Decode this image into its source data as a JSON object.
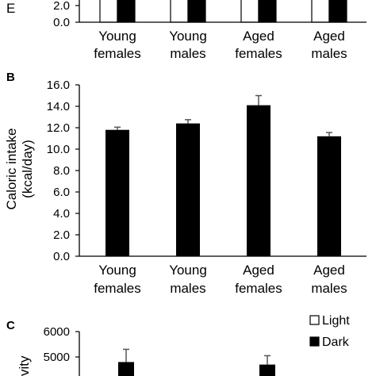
{
  "chart_data": [
    {
      "panel_label": "",
      "type": "bar",
      "ylabel": "E",
      "ylim": [
        0,
        2.0
      ],
      "yticks": [
        "0.0",
        "2.0"
      ],
      "categories": [
        [
          "Young",
          "females"
        ],
        [
          "Young",
          "males"
        ],
        [
          "Aged",
          "females"
        ],
        [
          "Aged",
          "males"
        ]
      ],
      "series": [
        {
          "name": "Light",
          "color": "#ffffff"
        },
        {
          "name": "Dark",
          "color": "#000000"
        }
      ]
    },
    {
      "panel_label": "B",
      "type": "bar",
      "ylabel": [
        "Caloric intake",
        "(kcal/day)"
      ],
      "ylim": [
        0,
        16
      ],
      "yticks": [
        "0.0",
        "2.0",
        "4.0",
        "6.0",
        "8.0",
        "10.0",
        "12.0",
        "14.0",
        "16.0"
      ],
      "categories": [
        [
          "Young",
          "females"
        ],
        [
          "Young",
          "males"
        ],
        [
          "Aged",
          "females"
        ],
        [
          "Aged",
          "males"
        ]
      ],
      "values": [
        11.8,
        12.4,
        14.1,
        11.2
      ],
      "errors": [
        0.25,
        0.35,
        0.9,
        0.35
      ],
      "bar_color": "#000000"
    },
    {
      "panel_label": "C",
      "type": "bar",
      "ylabel": "vity",
      "ylim": [
        4000,
        6000
      ],
      "yticks": [
        "5000",
        "6000"
      ],
      "series": [
        {
          "name": "Light",
          "color": "#ffffff"
        },
        {
          "name": "Dark",
          "color": "#000000",
          "visible_values": [
            4800,
            null,
            4700,
            null
          ],
          "visible_errors": [
            500,
            null,
            350,
            null
          ]
        }
      ]
    }
  ]
}
